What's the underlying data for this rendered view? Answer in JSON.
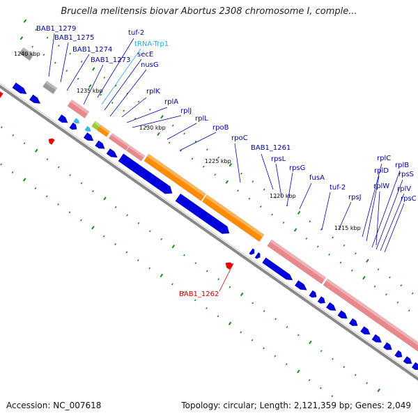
{
  "title": "Brucella melitensis biovar Abortus 2308 chromosome I, comple...",
  "footer": {
    "accession_label": "Accession: NC_007618",
    "summary": "Topology: circular; Length: 2,121,359 bp; Genes: 2,049"
  },
  "colors": {
    "forward_gene": "#0000dd",
    "reverse_gene": "#ee0000",
    "rrna_highlight": "#ff8c00",
    "ribosomal_protein": "#e8888c",
    "trna": "#33bbee",
    "pseudo_gray": "#999999",
    "kbp_tick": "#1a8a1a",
    "backbone": "#888888"
  },
  "kbp_labels": [
    "1240 kbp",
    "1235 kbp",
    "1230 kbp",
    "1225 kbp",
    "1220 kbp",
    "1215 kbp"
  ],
  "gene_labels": [
    {
      "text": "BAB1_1279",
      "color": "#0000aa"
    },
    {
      "text": "BAB1_1275",
      "color": "#0000aa"
    },
    {
      "text": "BAB1_1274",
      "color": "#0000aa"
    },
    {
      "text": "BAB1_1273",
      "color": "#0000aa"
    },
    {
      "text": "tuf-2",
      "color": "#0000aa"
    },
    {
      "text": "tRNA-Trp1",
      "color": "#22aadd"
    },
    {
      "text": "secE",
      "color": "#0000aa"
    },
    {
      "text": "nusG",
      "color": "#0000aa"
    },
    {
      "text": "rplK",
      "color": "#0000aa"
    },
    {
      "text": "rplA",
      "color": "#0000aa"
    },
    {
      "text": "rplJ",
      "color": "#0000aa"
    },
    {
      "text": "rplL",
      "color": "#0000aa"
    },
    {
      "text": "rpoB",
      "color": "#0000aa"
    },
    {
      "text": "rpoC",
      "color": "#0000aa"
    },
    {
      "text": "BAB1_1261",
      "color": "#0000aa"
    },
    {
      "text": "rpsL",
      "color": "#0000aa"
    },
    {
      "text": "rpsG",
      "color": "#0000aa"
    },
    {
      "text": "fusA",
      "color": "#0000aa"
    },
    {
      "text": "tuf-2",
      "color": "#0000aa"
    },
    {
      "text": "rpsJ",
      "color": "#0000aa"
    },
    {
      "text": "rplC",
      "color": "#0000aa"
    },
    {
      "text": "rplD",
      "color": "#0000aa"
    },
    {
      "text": "rplW",
      "color": "#0000aa"
    },
    {
      "text": "rplB",
      "color": "#0000aa"
    },
    {
      "text": "rpsS",
      "color": "#0000aa"
    },
    {
      "text": "rplV",
      "color": "#0000aa"
    },
    {
      "text": "rpsC",
      "color": "#0000aa"
    },
    {
      "text": "BAB1_1262",
      "color": "#cc0000"
    }
  ]
}
